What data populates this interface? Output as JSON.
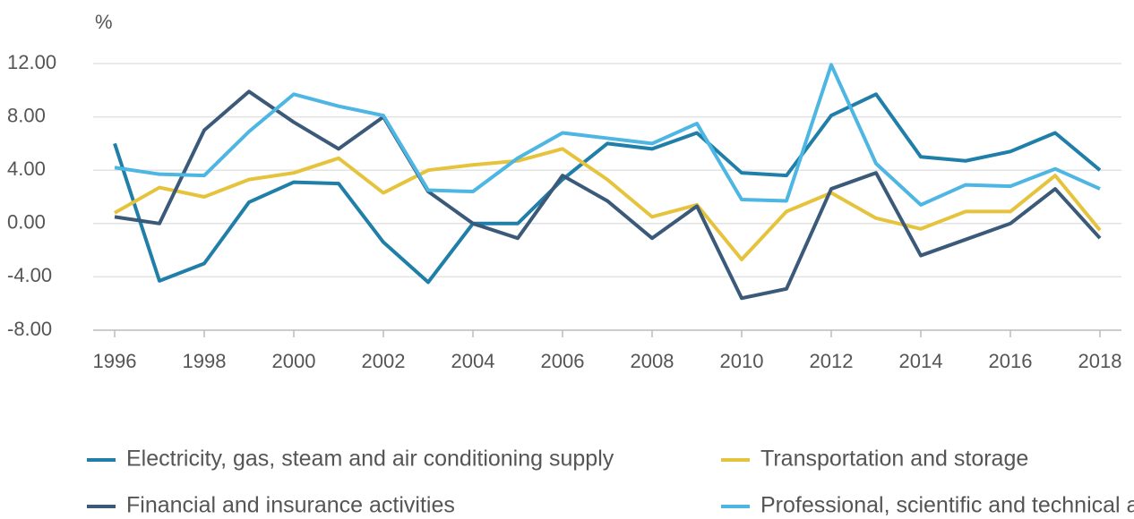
{
  "chart_data": {
    "type": "line",
    "y_label": "%",
    "x": [
      1996,
      1997,
      1998,
      1999,
      2000,
      2001,
      2002,
      2003,
      2004,
      2005,
      2006,
      2007,
      2008,
      2009,
      2010,
      2011,
      2012,
      2013,
      2014,
      2015,
      2016,
      2017,
      2018
    ],
    "xlim": [
      1996,
      2018
    ],
    "xticks": [
      1996,
      1998,
      2000,
      2002,
      2004,
      2006,
      2008,
      2010,
      2012,
      2014,
      2016,
      2018
    ],
    "ylim": [
      -8,
      12
    ],
    "yticks": [
      {
        "value": -8,
        "label": "-8.00"
      },
      {
        "value": -4,
        "label": "-4.00"
      },
      {
        "value": 0,
        "label": "0.00"
      },
      {
        "value": 4,
        "label": "4.00"
      },
      {
        "value": 8,
        "label": "8.00"
      },
      {
        "value": 12,
        "label": "12.00"
      }
    ],
    "grid": true,
    "legend": "bottom",
    "series": [
      {
        "name": "Electricity, gas, steam and air conditioning supply",
        "color": "#1f7fa8",
        "values": [
          6.0,
          -4.3,
          -3.0,
          1.6,
          3.1,
          3.0,
          -1.4,
          -4.4,
          0,
          0,
          3.3,
          6.0,
          5.6,
          6.8,
          3.8,
          3.6,
          8.1,
          9.7,
          5.0,
          4.7,
          5.4,
          6.8,
          4.0
        ]
      },
      {
        "name": "Transportation and storage",
        "color": "#e6c33c",
        "values": [
          0.8,
          2.7,
          2.0,
          3.3,
          3.8,
          4.9,
          2.3,
          4.0,
          4.4,
          4.7,
          5.6,
          3.3,
          0.5,
          1.4,
          -2.7,
          0.9,
          2.3,
          0.4,
          -0.4,
          0.9,
          0.9,
          3.6,
          -0.5
        ]
      },
      {
        "name": "Financial and insurance activities",
        "color": "#3b5a79",
        "values": [
          0.5,
          0,
          7.0,
          9.9,
          7.6,
          5.6,
          8.0,
          2.4,
          0,
          -1.1,
          3.6,
          1.7,
          -1.1,
          1.3,
          -5.6,
          -4.9,
          2.6,
          3.8,
          -2.4,
          -1.2,
          0,
          2.6,
          -1.1
        ]
      },
      {
        "name": "Professional, scientific and technical activities",
        "color": "#4db6e2",
        "values": [
          4.2,
          3.7,
          3.6,
          6.9,
          9.7,
          8.8,
          8.1,
          2.5,
          2.4,
          4.9,
          6.8,
          6.4,
          6.0,
          7.5,
          1.8,
          1.7,
          11.9,
          4.5,
          1.4,
          2.9,
          2.8,
          4.1,
          2.6
        ]
      }
    ]
  }
}
